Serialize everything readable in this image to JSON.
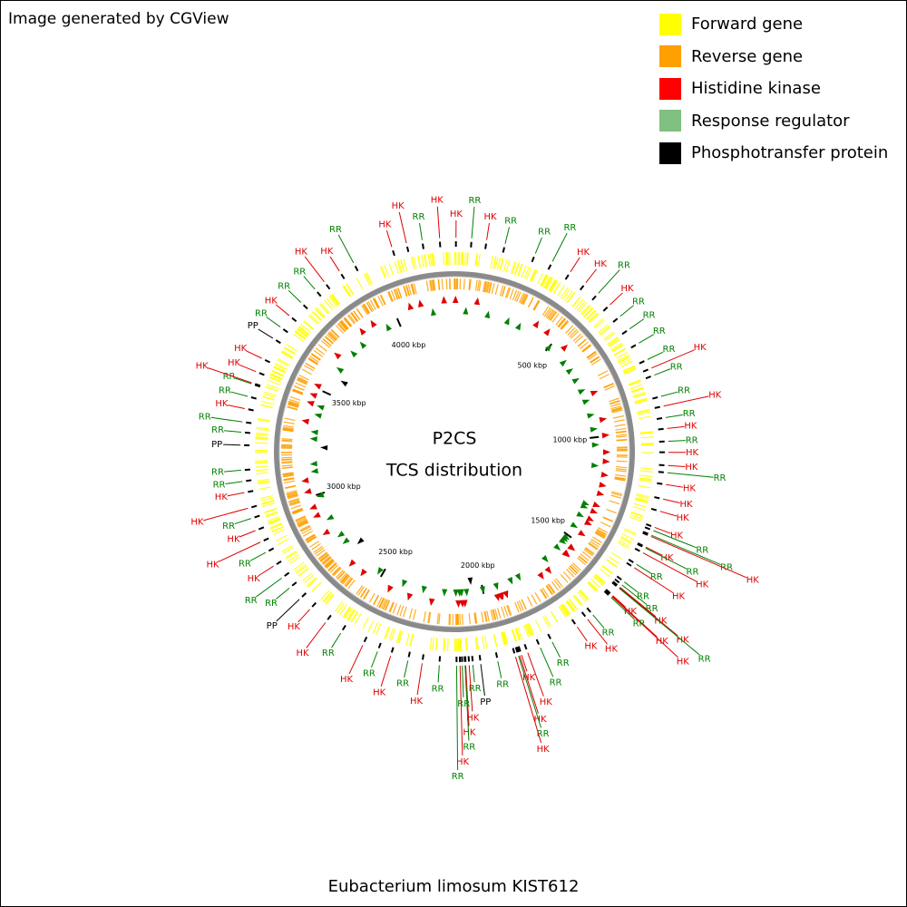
{
  "header": {
    "title": "Image generated by CGView"
  },
  "legend": [
    {
      "label": "Forward gene",
      "color": "#ffff00"
    },
    {
      "label": "Reverse gene",
      "color": "#ff9f00"
    },
    {
      "label": "Histidine kinase",
      "color": "#ff0000"
    },
    {
      "label": "Response regulator",
      "color": "#80c080"
    },
    {
      "label": "Phosphotransfer protein",
      "color": "#000000"
    }
  ],
  "map": {
    "title": "P2CS",
    "subtitle": "TCS distribution",
    "caption": "Eubacterium limosum KIST612",
    "lim": [
      0,
      4276
    ],
    "ticks": [
      {
        "value": 500,
        "label": "500 kbp"
      },
      {
        "value": 1000,
        "label": "1000 kbp"
      },
      {
        "value": 1500,
        "label": "1500 kbp"
      },
      {
        "value": 2000,
        "label": "2000 kbp"
      },
      {
        "value": 2500,
        "label": "2500 kbp"
      },
      {
        "value": 3000,
        "label": "3000 kbp"
      },
      {
        "value": 3500,
        "label": "3500 kbp"
      },
      {
        "value": 4000,
        "label": "4000 kbp"
      }
    ],
    "label_colors": {
      "HK": "#e00000",
      "RR": "#008000",
      "PP": "#000000"
    },
    "features": [
      {
        "label": "HK",
        "pos": 5
      },
      {
        "label": "RR",
        "pos": 55
      },
      {
        "label": "HK",
        "pos": 103
      },
      {
        "label": "RR",
        "pos": 163
      },
      {
        "label": "RR",
        "pos": 264
      },
      {
        "label": "RR",
        "pos": 324
      },
      {
        "label": "HK",
        "pos": 390
      },
      {
        "label": "HK",
        "pos": 450
      },
      {
        "label": "RR",
        "pos": 502
      },
      {
        "label": "HK",
        "pos": 554
      },
      {
        "label": "RR",
        "pos": 603
      },
      {
        "label": "RR",
        "pos": 653
      },
      {
        "label": "RR",
        "pos": 707
      },
      {
        "label": "RR",
        "pos": 766
      },
      {
        "label": "HK",
        "pos": 796
      },
      {
        "label": "RR",
        "pos": 820
      },
      {
        "label": "RR",
        "pos": 891
      },
      {
        "label": "HK",
        "pos": 923
      },
      {
        "label": "RR",
        "pos": 960
      },
      {
        "label": "HK",
        "pos": 995
      },
      {
        "label": "RR",
        "pos": 1036
      },
      {
        "label": "HK",
        "pos": 1071
      },
      {
        "label": "HK",
        "pos": 1113
      },
      {
        "label": "RR",
        "pos": 1136
      },
      {
        "label": "HK",
        "pos": 1174
      },
      {
        "label": "HK",
        "pos": 1221
      },
      {
        "label": "HK",
        "pos": 1261
      },
      {
        "label": "HK",
        "pos": 1315
      },
      {
        "label": "RR",
        "pos": 1326
      },
      {
        "label": "RR",
        "pos": 1342
      },
      {
        "label": "HK",
        "pos": 1346
      },
      {
        "label": "HK",
        "pos": 1384
      },
      {
        "label": "RR",
        "pos": 1387
      },
      {
        "label": "HK",
        "pos": 1404
      },
      {
        "label": "RR",
        "pos": 1446
      },
      {
        "label": "HK",
        "pos": 1459
      },
      {
        "label": "RR",
        "pos": 1514
      },
      {
        "label": "RR",
        "pos": 1526
      },
      {
        "label": "HK",
        "pos": 1536
      },
      {
        "label": "HK",
        "pos": 1538
      },
      {
        "label": "RR",
        "pos": 1540
      },
      {
        "label": "HK",
        "pos": 1571
      },
      {
        "label": "HK",
        "pos": 1573
      },
      {
        "label": "HK",
        "pos": 1575
      },
      {
        "label": "RR",
        "pos": 1579
      },
      {
        "label": "RR",
        "pos": 1659
      },
      {
        "label": "HK",
        "pos": 1681
      },
      {
        "label": "HK",
        "pos": 1722
      },
      {
        "label": "RR",
        "pos": 1815
      },
      {
        "label": "RR",
        "pos": 1857
      },
      {
        "label": "HK",
        "pos": 1900
      },
      {
        "label": "HK",
        "pos": 1921
      },
      {
        "label": "HK",
        "pos": 1927
      },
      {
        "label": "RR",
        "pos": 1931
      },
      {
        "label": "HK",
        "pos": 1941
      },
      {
        "label": "RR",
        "pos": 1999
      },
      {
        "label": "PP",
        "pos": 2054
      },
      {
        "label": "RR",
        "pos": 2079
      },
      {
        "label": "HK",
        "pos": 2091
      },
      {
        "label": "HK",
        "pos": 2102
      },
      {
        "label": "RR",
        "pos": 2104
      },
      {
        "label": "RR",
        "pos": 2113
      },
      {
        "label": "HK",
        "pos": 2120
      },
      {
        "label": "RR",
        "pos": 2131
      },
      {
        "label": "RR",
        "pos": 2186
      },
      {
        "label": "HK",
        "pos": 2241
      },
      {
        "label": "RR",
        "pos": 2287
      },
      {
        "label": "HK",
        "pos": 2344
      },
      {
        "label": "RR",
        "pos": 2388
      },
      {
        "label": "HK",
        "pos": 2439
      },
      {
        "label": "RR",
        "pos": 2519
      },
      {
        "label": "HK",
        "pos": 2578
      },
      {
        "label": "HK",
        "pos": 2643
      },
      {
        "label": "PP",
        "pos": 2689
      },
      {
        "label": "RR",
        "pos": 2737
      },
      {
        "label": "RR",
        "pos": 2777
      },
      {
        "label": "HK",
        "pos": 2823
      },
      {
        "label": "RR",
        "pos": 2873
      },
      {
        "label": "HK",
        "pos": 2910
      },
      {
        "label": "HK",
        "pos": 2950
      },
      {
        "label": "RR",
        "pos": 2991
      },
      {
        "label": "HK",
        "pos": 3025
      },
      {
        "label": "HK",
        "pos": 3076
      },
      {
        "label": "RR",
        "pos": 3112
      },
      {
        "label": "RR",
        "pos": 3148
      },
      {
        "label": "PP",
        "pos": 3228
      },
      {
        "label": "RR",
        "pos": 3269
      },
      {
        "label": "RR",
        "pos": 3302
      },
      {
        "label": "HK",
        "pos": 3345
      },
      {
        "label": "RR",
        "pos": 3385
      },
      {
        "label": "RR",
        "pos": 3427
      },
      {
        "label": "HK",
        "pos": 3430
      },
      {
        "label": "HK",
        "pos": 3468
      },
      {
        "label": "HK",
        "pos": 3514
      },
      {
        "label": "PP",
        "pos": 3587
      },
      {
        "label": "RR",
        "pos": 3630
      },
      {
        "label": "HK",
        "pos": 3676
      },
      {
        "label": "RR",
        "pos": 3732
      },
      {
        "label": "RR",
        "pos": 3793
      },
      {
        "label": "HK",
        "pos": 3831
      },
      {
        "label": "HK",
        "pos": 3890
      },
      {
        "label": "RR",
        "pos": 3942
      },
      {
        "label": "HK",
        "pos": 4074
      },
      {
        "label": "HK",
        "pos": 4122
      },
      {
        "label": "RR",
        "pos": 4173
      },
      {
        "label": "HK",
        "pos": 4229
      }
    ]
  }
}
